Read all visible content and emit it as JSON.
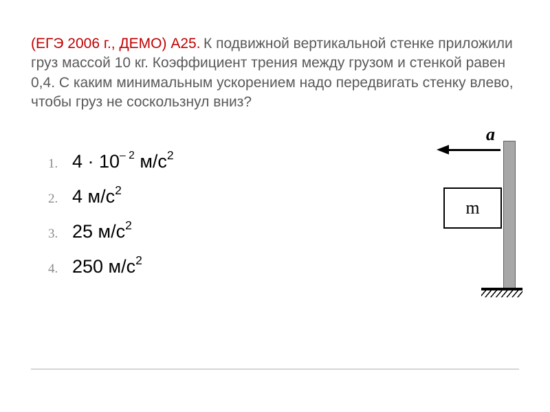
{
  "problem": {
    "source": "(ЕГЭ 2006 г., ДЕМО) А25.",
    "text": " К подвижной вертикальной стенке приложили груз массой 10 кг. Коэффициент трения между грузом и стенкой равен  0,4.  С каким минимальным ускорением надо передвигать стенку влево, чтобы груз не соскользнул вниз?"
  },
  "answers": [
    {
      "num": "1.",
      "prefix": "4 · 10",
      "exp": "– 2",
      "suffix": "  м/с",
      "unit_exp": "2"
    },
    {
      "num": "2.",
      "prefix": "4 м/с",
      "exp": "",
      "suffix": "",
      "unit_exp": "2"
    },
    {
      "num": "3.",
      "prefix": "25 м/с",
      "exp": "",
      "suffix": "",
      "unit_exp": "2"
    },
    {
      "num": "4.",
      "prefix": "250 м/с",
      "exp": "",
      "suffix": "",
      "unit_exp": "2"
    }
  ],
  "diagram": {
    "mass_label": "m",
    "accel_label": "a",
    "wall_color": "#a7a7a7",
    "wall_border": "#606060",
    "box_border": "#000000",
    "arrow_color": "#000000"
  },
  "styling": {
    "source_color": "#c00000",
    "text_color": "#595959",
    "answer_color": "#000000",
    "answer_num_color": "#8b8b8b",
    "background": "#ffffff",
    "title_fontsize": 21,
    "answer_fontsize": 27,
    "diagram_label_fontsize": 26
  }
}
